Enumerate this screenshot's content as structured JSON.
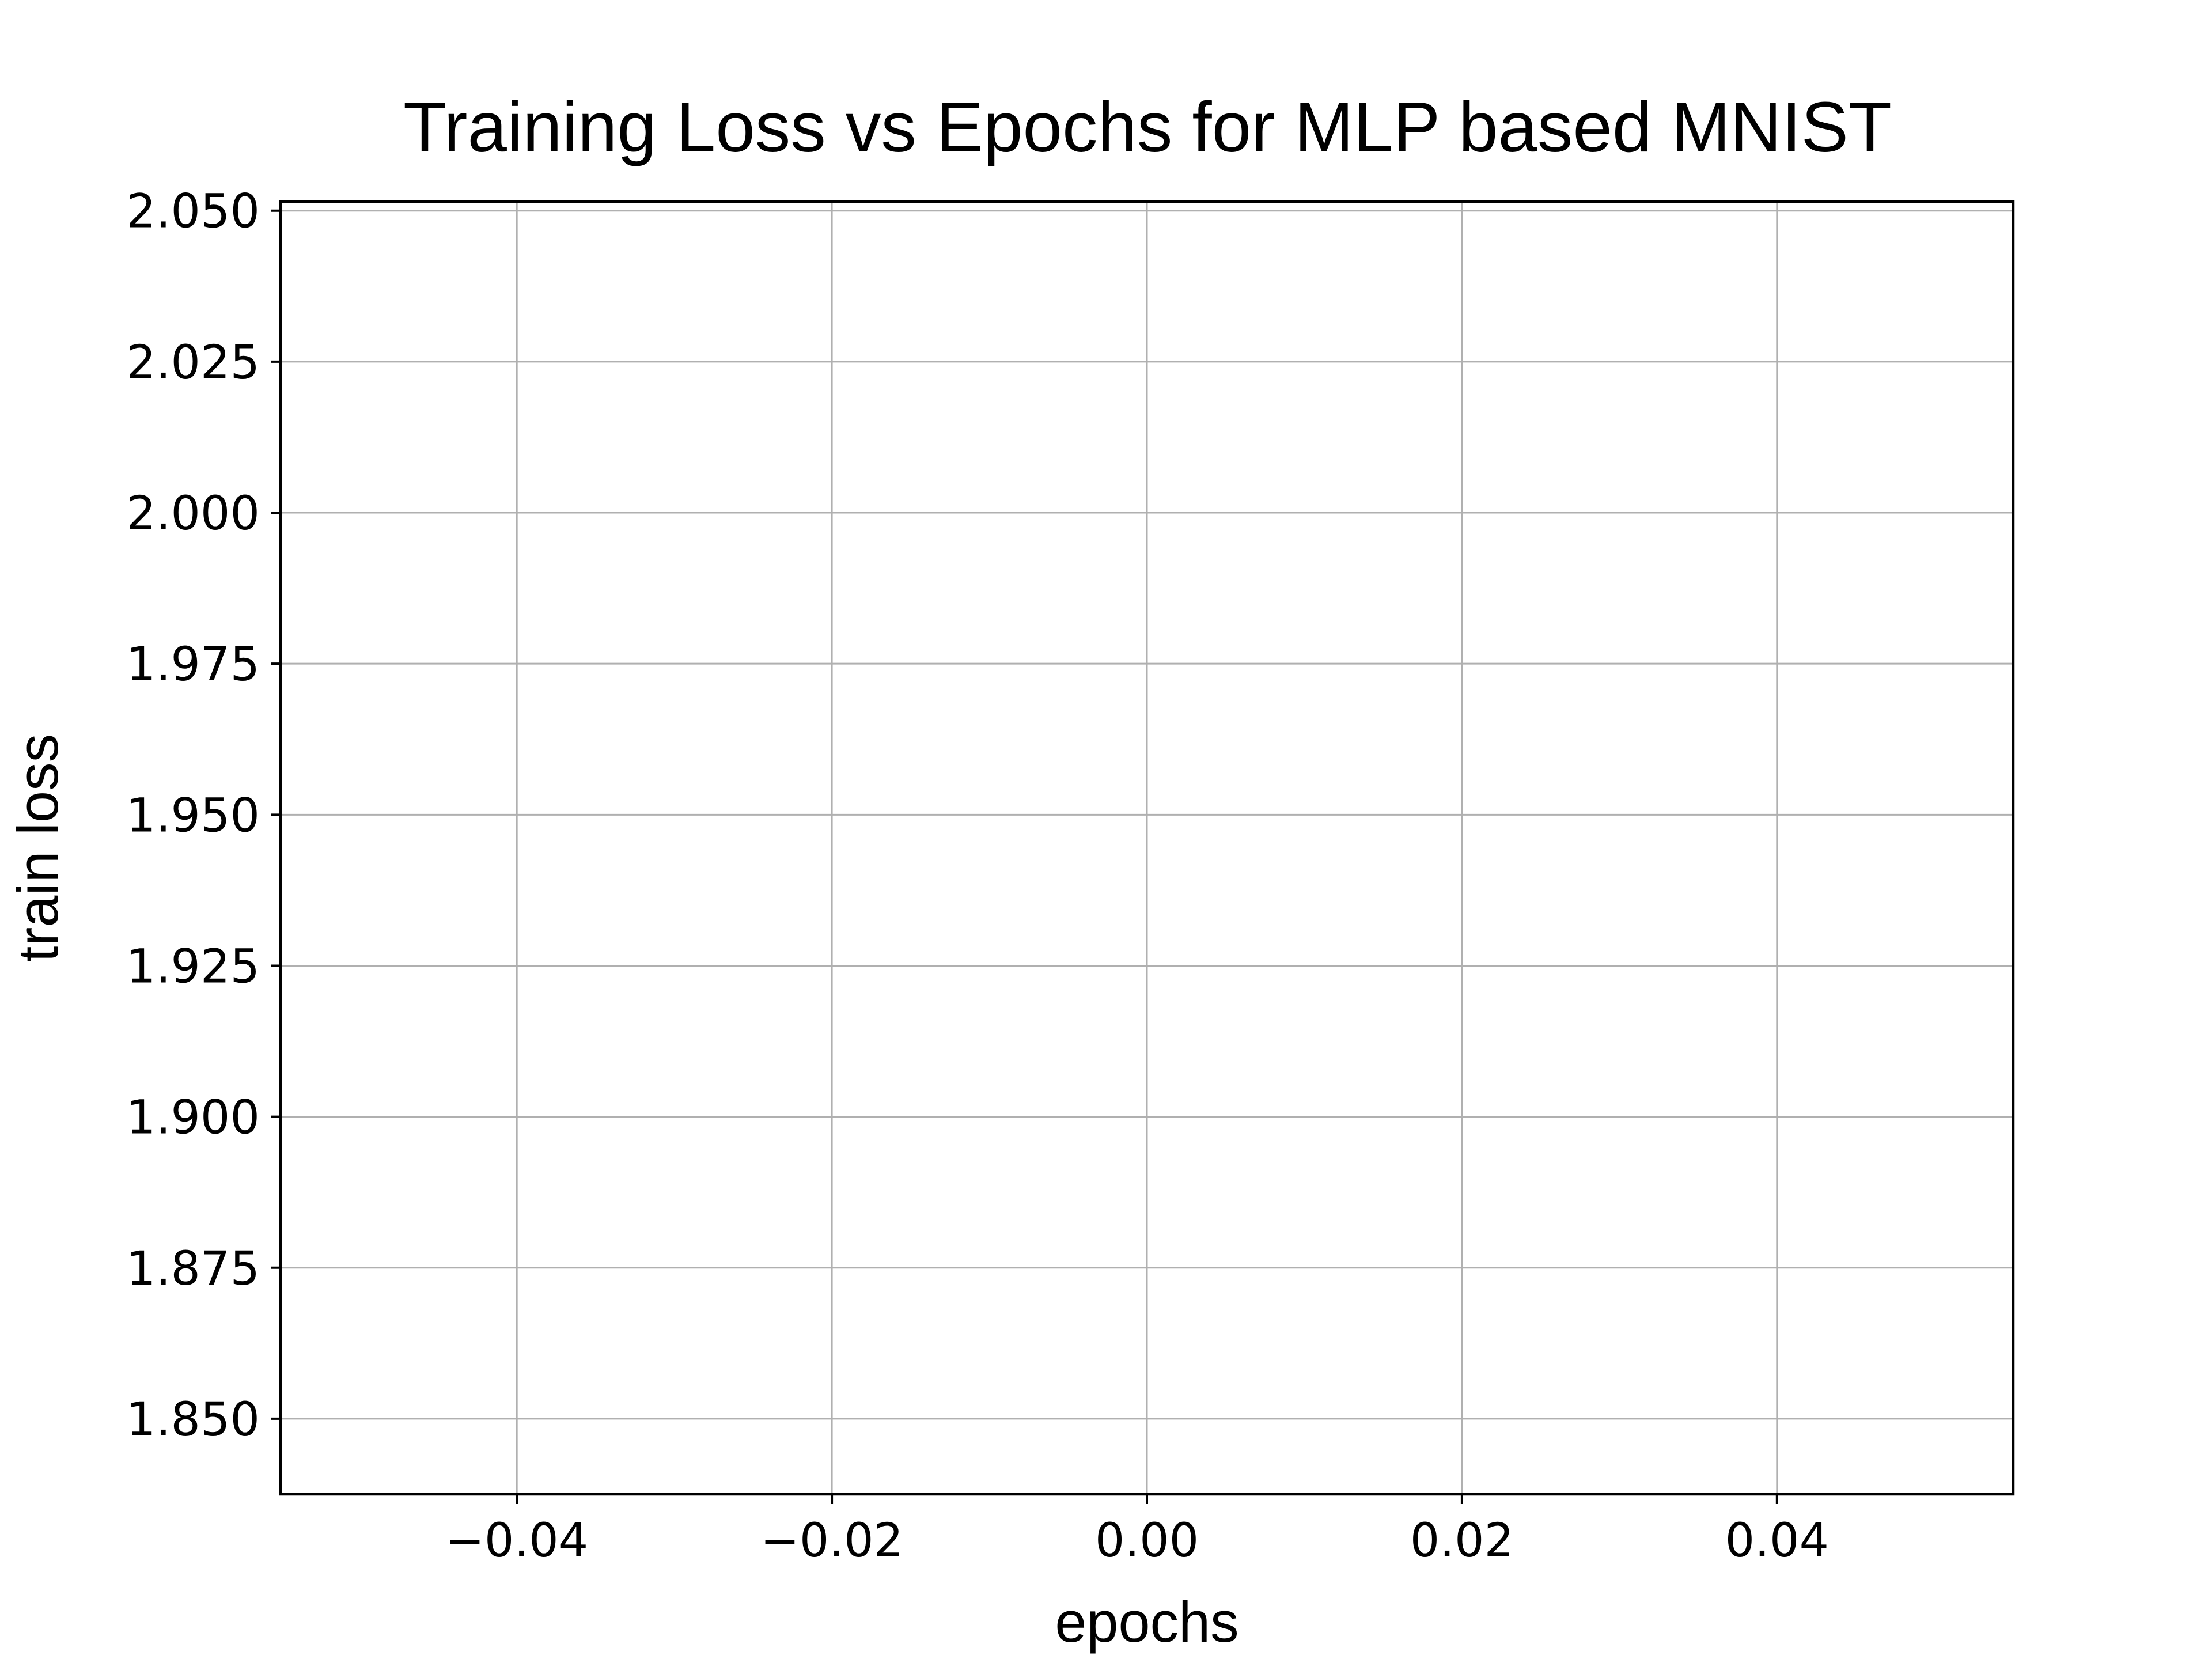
{
  "chart_data": {
    "type": "line",
    "title": "Training Loss vs Epochs for MLP based MNIST",
    "xlabel": "epochs",
    "ylabel": "train loss",
    "xlim": [
      -0.055,
      0.055
    ],
    "ylim": [
      1.8375,
      2.0515
    ],
    "xticks": [
      -0.04,
      -0.02,
      0.0,
      0.02,
      0.04
    ],
    "xtick_labels": [
      "−0.04",
      "−0.02",
      "0.00",
      "0.02",
      "0.04"
    ],
    "yticks": [
      1.85,
      1.875,
      1.9,
      1.925,
      1.95,
      1.975,
      2.0,
      2.025,
      2.05
    ],
    "ytick_labels": [
      "1.850",
      "1.875",
      "1.900",
      "1.925",
      "1.950",
      "1.975",
      "2.000",
      "2.025",
      "2.050"
    ],
    "grid": true,
    "series": [
      {
        "x": [],
        "y": [],
        "color": "#1f77b4"
      }
    ]
  }
}
